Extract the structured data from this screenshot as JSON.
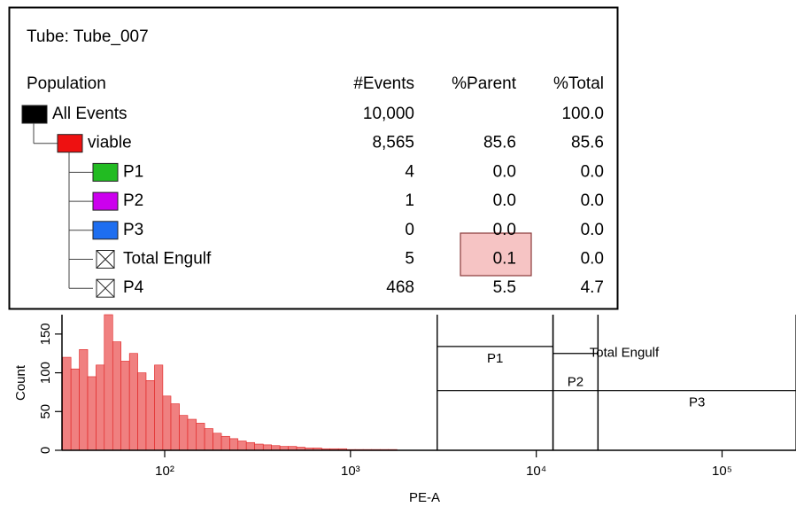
{
  "table": {
    "title": "Tube:  Tube_007",
    "columns": [
      "Population",
      "#Events",
      "%Parent",
      "%Total"
    ],
    "rows": [
      {
        "name": "All Events",
        "color": "#000000",
        "level": 0,
        "events": "10,000",
        "parent": null,
        "total": "100.0"
      },
      {
        "name": "viable",
        "color": "#ee1111",
        "level": 1,
        "events": "8,565",
        "parent": "85.6",
        "total": "85.6"
      },
      {
        "name": "P1",
        "color": "#22bb22",
        "level": 2,
        "events": "4",
        "parent": "0.0",
        "total": "0.0"
      },
      {
        "name": "P2",
        "color": "#cc00ee",
        "level": 2,
        "events": "1",
        "parent": "0.0",
        "total": "0.0"
      },
      {
        "name": "P3",
        "color": "#1e6ef0",
        "level": 2,
        "events": "0",
        "parent": "0.0",
        "total": "0.0"
      },
      {
        "name": "Total Engulf",
        "color": null,
        "level": 2,
        "events": "5",
        "parent": "0.1",
        "total": "0.0"
      },
      {
        "name": "P4",
        "color": null,
        "level": 2,
        "events": "468",
        "parent": "5.5",
        "total": "4.7"
      }
    ]
  },
  "chart_data": {
    "type": "histogram",
    "xlabel": "PE-A",
    "ylabel": "Count",
    "xscale": "log",
    "color": "#f08080",
    "edge_color": "#e02020",
    "bins": [
      28.2,
      31.3,
      34.7,
      38.5,
      42.7,
      47.3,
      52.5,
      58.2,
      64.6,
      71.6,
      79.4,
      88.1,
      97.7,
      108,
      120,
      133,
      148,
      164,
      182,
      202,
      224,
      248,
      275,
      305,
      339,
      376,
      417,
      462,
      513,
      569,
      631,
      700,
      776,
      861,
      955,
      1060,
      1170,
      1300,
      1450,
      1600,
      1780
    ],
    "values": [
      120,
      105,
      130,
      95,
      110,
      175,
      140,
      115,
      125,
      100,
      90,
      110,
      70,
      60,
      45,
      40,
      35,
      28,
      22,
      18,
      15,
      12,
      10,
      8,
      7,
      6,
      5,
      5,
      4,
      3,
      3,
      2,
      2,
      2,
      1,
      1,
      1,
      1,
      1,
      1
    ],
    "xlim": [
      28,
      250000
    ],
    "xticks": [
      {
        "value": 100,
        "label": "10²"
      },
      {
        "value": 1000,
        "label": "10³"
      },
      {
        "value": 10000,
        "label": "10⁴"
      },
      {
        "value": 100000,
        "label": "10⁵"
      }
    ],
    "ylim": [
      0,
      175
    ],
    "yticks": [
      0,
      50,
      100,
      150
    ],
    "gates": [
      {
        "name": "P1",
        "range": [
          2930,
          12300
        ],
        "level": 134
      },
      {
        "name": "Total Engulf",
        "range": [
          12300,
          21500
        ],
        "level": 125
      },
      {
        "name": "P2",
        "range": [
          12300,
          21500
        ],
        "level": 77
      },
      {
        "name": "P3",
        "range": [
          21500,
          250000
        ],
        "level": 77
      },
      {
        "range": [
          2930,
          12300
        ],
        "level": 77
      }
    ]
  }
}
